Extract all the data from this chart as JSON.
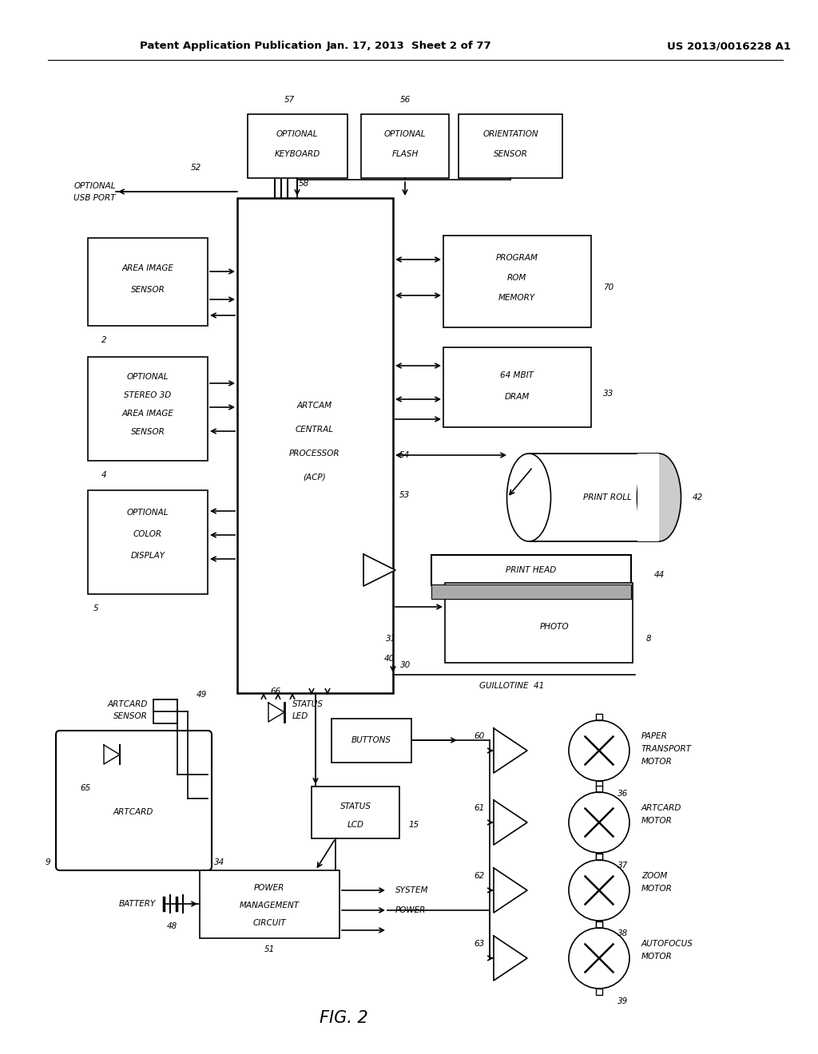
{
  "bg_color": "#ffffff",
  "header_left": "Patent Application Publication",
  "header_mid": "Jan. 17, 2013  Sheet 2 of 77",
  "header_right": "US 2013/0016228 A1",
  "figure_label": "FIG. 2"
}
